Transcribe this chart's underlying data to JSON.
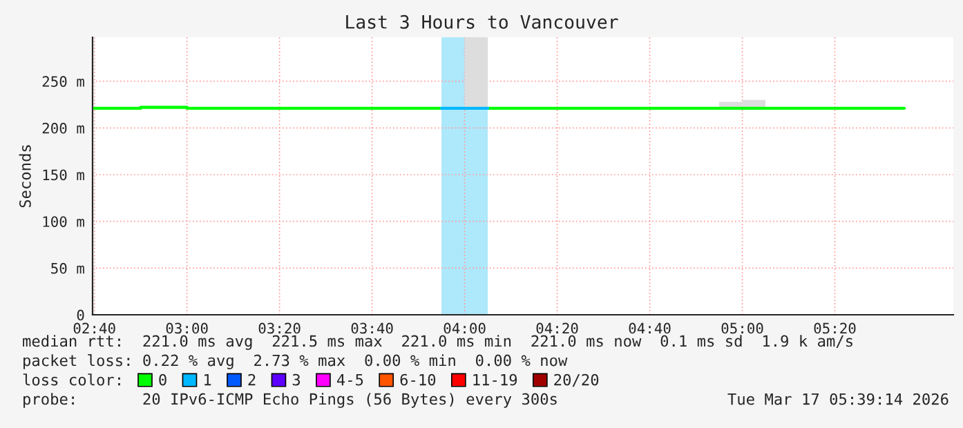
{
  "chart_data": {
    "type": "step",
    "title": "Last 3 Hours to Vancouver",
    "ylabel": "Seconds",
    "xlim": [
      2.66,
      5.76
    ],
    "ylim": [
      0,
      297
    ],
    "xticks": [
      {
        "value": 2.6667,
        "label": "02:40"
      },
      {
        "value": 3.0,
        "label": "03:00"
      },
      {
        "value": 3.3333,
        "label": "03:20"
      },
      {
        "value": 3.6667,
        "label": "03:40"
      },
      {
        "value": 4.0,
        "label": "04:00"
      },
      {
        "value": 4.3333,
        "label": "04:20"
      },
      {
        "value": 4.6667,
        "label": "04:40"
      },
      {
        "value": 5.0,
        "label": "05:00"
      },
      {
        "value": 5.3333,
        "label": "05:20"
      }
    ],
    "yticks": [
      0,
      {
        "value": 50,
        "label": "50 m"
      },
      {
        "value": 100,
        "label": "100 m"
      },
      {
        "value": 150,
        "label": "150 m"
      },
      {
        "value": 200,
        "label": "200 m"
      },
      {
        "value": 250,
        "label": "250 m"
      }
    ],
    "grid": true,
    "legend": "bottom",
    "bands": [
      {
        "axis": "x",
        "from": 3.9167,
        "to": 4.0833,
        "color": "#aee8fb"
      }
    ],
    "series": [
      {
        "type": "bar",
        "color": "#dddddd",
        "x": [
          4.0417,
          4.9583,
          5.0417
        ],
        "base": [
          221,
          221,
          221
        ],
        "values": [
          76,
          7,
          9
        ]
      },
      {
        "name": "0",
        "color": "#00ff00",
        "x": [
          2.6667,
          2.8333,
          3.0,
          3.9167,
          4.0833,
          5.5833
        ],
        "values": [
          221,
          222,
          221,
          null,
          221,
          221
        ]
      },
      {
        "name": "1",
        "color": "#00b8ff",
        "x": [
          3.9167,
          4.0833
        ],
        "values": [
          221,
          221
        ]
      },
      {
        "name": "2",
        "color": "#0059ff",
        "values": [
          null
        ]
      },
      {
        "name": "3",
        "color": "#5e00ff",
        "values": [
          null
        ]
      },
      {
        "name": "4-5",
        "color": "#ff00ff",
        "values": [
          null
        ]
      },
      {
        "name": "6-10",
        "color": "#ff5500",
        "values": [
          null
        ]
      },
      {
        "name": "11-19",
        "color": "#ff0000",
        "values": [
          null
        ]
      },
      {
        "name": "20/20",
        "color": "#a10000",
        "values": [
          null
        ]
      }
    ],
    "annotations": [
      "median rtt:  221.0 ms avg  221.5 ms max  221.0 ms min  221.0 ms now  0.1 ms sd  1.9 k am/s",
      "packet loss: 0.22 % avg  2.73 % max  0.00 % min  0.00 % now",
      "loss color:",
      "probe:       20 IPv6-ICMP Echo Pings (56 Bytes) every 300s",
      "Tue Mar 17 05:39:14 2026"
    ]
  }
}
